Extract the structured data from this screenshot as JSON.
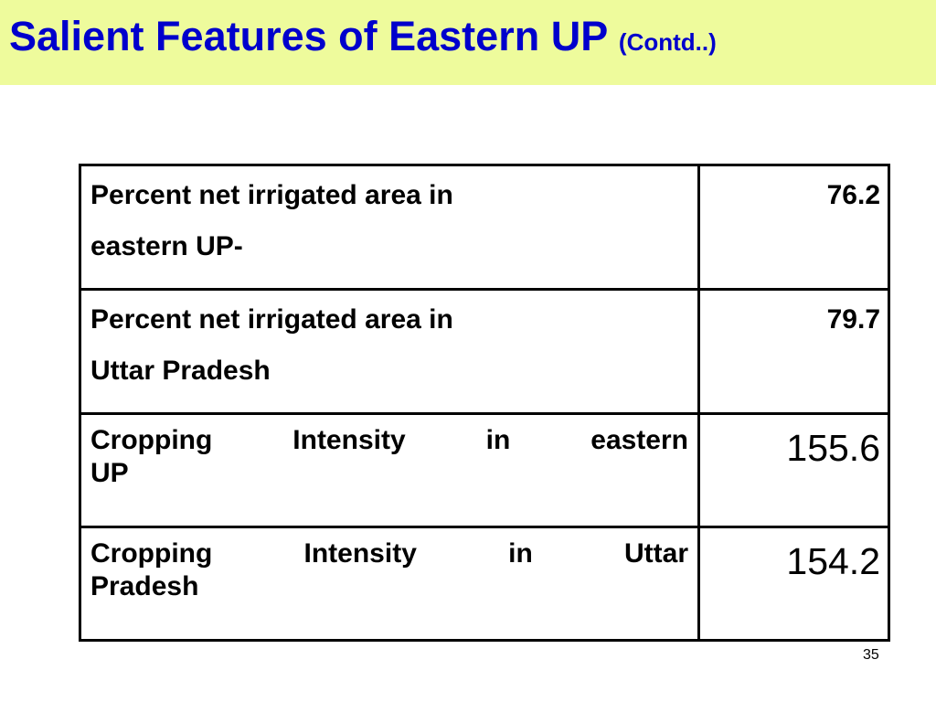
{
  "header": {
    "title": "Salient Features of Eastern UP",
    "subtitle": "(Contd..)"
  },
  "table": {
    "rows": [
      [
        [
          "Percent net irrigated area in",
          "eastern UP-"
        ],
        76.2
      ],
      [
        [
          "Percent net irrigated area in",
          "Uttar Pradesh"
        ],
        79.7
      ],
      [
        [
          "Cropping Intensity in eastern",
          "UP"
        ],
        155.6
      ],
      [
        [
          "Cropping Intensity in Uttar",
          "Pradesh"
        ],
        154.2
      ]
    ]
  },
  "page_number": 35
}
